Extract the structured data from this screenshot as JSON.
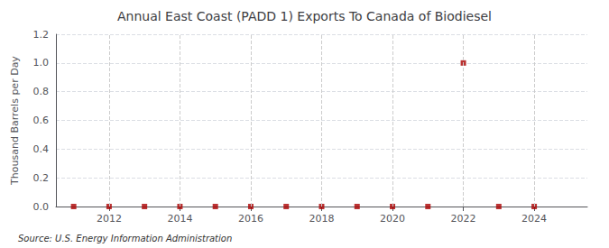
{
  "chart_data": {
    "type": "scatter",
    "title": "Annual East Coast (PADD 1) Exports To Canada of Biodiesel",
    "ylabel": "Thousand Barrels per Day",
    "annotation": "Source: U.S. Energy Information Administration",
    "x": [
      2011,
      2012,
      2013,
      2014,
      2015,
      2016,
      2017,
      2018,
      2019,
      2020,
      2021,
      2022,
      2023,
      2024
    ],
    "values": [
      0.0,
      0.0,
      0.0,
      0.0,
      0.0,
      0.0,
      0.0,
      0.0,
      0.0,
      0.0,
      0.0,
      1.0,
      0.0,
      0.0
    ],
    "color": "#aa0000",
    "marker": "square",
    "xlim": [
      2010.5,
      2025.5
    ],
    "xticks": [
      2012,
      2014,
      2016,
      2018,
      2020,
      2022,
      2024
    ],
    "ylim": [
      0.0,
      1.2
    ],
    "yticks": [
      {
        "value": 0,
        "label": "0.0"
      },
      0.2,
      0.4,
      0.6,
      0.8,
      {
        "value": 1,
        "label": "1.0"
      },
      1.2
    ],
    "grid": true
  }
}
